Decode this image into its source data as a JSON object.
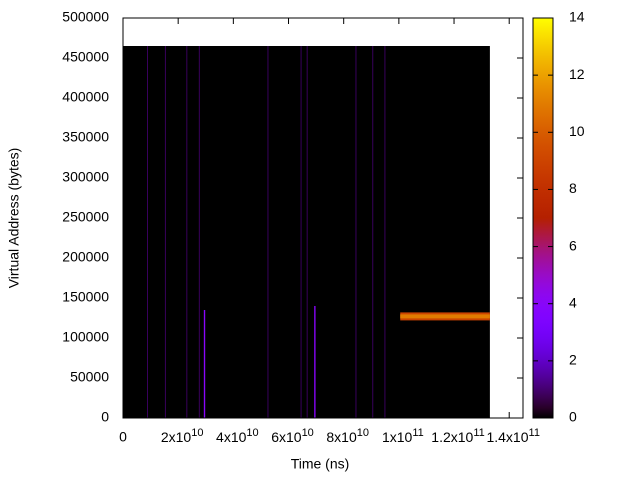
{
  "chart_data": {
    "type": "heatmap",
    "x_label": "Time (ns)",
    "y_label": "Virtual Address (bytes)",
    "xlim": [
      0,
      145000000000
    ],
    "ylim": [
      0,
      500000
    ],
    "cblim": [
      0,
      14
    ],
    "xticks": [
      0,
      {
        "value": 20000000000,
        "label": "2x10",
        "exponent": "10"
      },
      {
        "value": 40000000000,
        "label": "4x10",
        "exponent": "10"
      },
      {
        "value": 60000000000,
        "label": "6x10",
        "exponent": "10"
      },
      {
        "value": 80000000000,
        "label": "8x10",
        "exponent": "10"
      },
      {
        "value": 100000000000,
        "label": "1x10",
        "exponent": "11"
      },
      {
        "value": 120000000000,
        "label": "1.2x10",
        "exponent": "11"
      },
      {
        "value": 140000000000,
        "label": "1.4x10",
        "exponent": "11"
      }
    ],
    "yticks": [
      0,
      50000,
      100000,
      150000,
      200000,
      250000,
      300000,
      350000,
      400000,
      450000,
      500000
    ],
    "cbticks": [
      0,
      2,
      4,
      6,
      8,
      10,
      12,
      14
    ],
    "cells": [
      {
        "x": [
          0,
          133000000000
        ],
        "y": [
          0,
          465000
        ],
        "value": 0
      },
      {
        "x": [
          8700000000,
          9000000000
        ],
        "y": [
          0,
          465000
        ],
        "value": 1
      },
      {
        "x": [
          15200000000,
          15500000000
        ],
        "y": [
          0,
          465000
        ],
        "value": 1
      },
      {
        "x": [
          23000000000,
          23300000000
        ],
        "y": [
          0,
          465000
        ],
        "value": 1
      },
      {
        "x": [
          27500000000,
          27800000000
        ],
        "y": [
          0,
          465000
        ],
        "value": 1
      },
      {
        "x": [
          52400000000,
          52700000000
        ],
        "y": [
          0,
          465000
        ],
        "value": 1
      },
      {
        "x": [
          64400000000,
          64700000000
        ],
        "y": [
          0,
          465000
        ],
        "value": 1
      },
      {
        "x": [
          66600000000,
          66900000000
        ],
        "y": [
          0,
          465000
        ],
        "value": 1
      },
      {
        "x": [
          84300000000,
          84600000000
        ],
        "y": [
          0,
          465000
        ],
        "value": 1
      },
      {
        "x": [
          90400000000,
          90700000000
        ],
        "y": [
          0,
          465000
        ],
        "value": 1
      },
      {
        "x": [
          94800000000,
          95100000000
        ],
        "y": [
          0,
          465000
        ],
        "value": 1
      },
      {
        "x": [
          29300000000,
          29800000000
        ],
        "y": [
          0,
          135000
        ],
        "value": 4
      },
      {
        "x": [
          69300000000,
          69800000000
        ],
        "y": [
          0,
          140000
        ],
        "value": 4
      },
      {
        "x": [
          100500000000,
          133000000000
        ],
        "y": [
          122000,
          132000
        ],
        "value": 9
      },
      {
        "x": [
          100500000000,
          133000000000
        ],
        "y": [
          124500,
          129500
        ],
        "value": 11
      }
    ]
  }
}
